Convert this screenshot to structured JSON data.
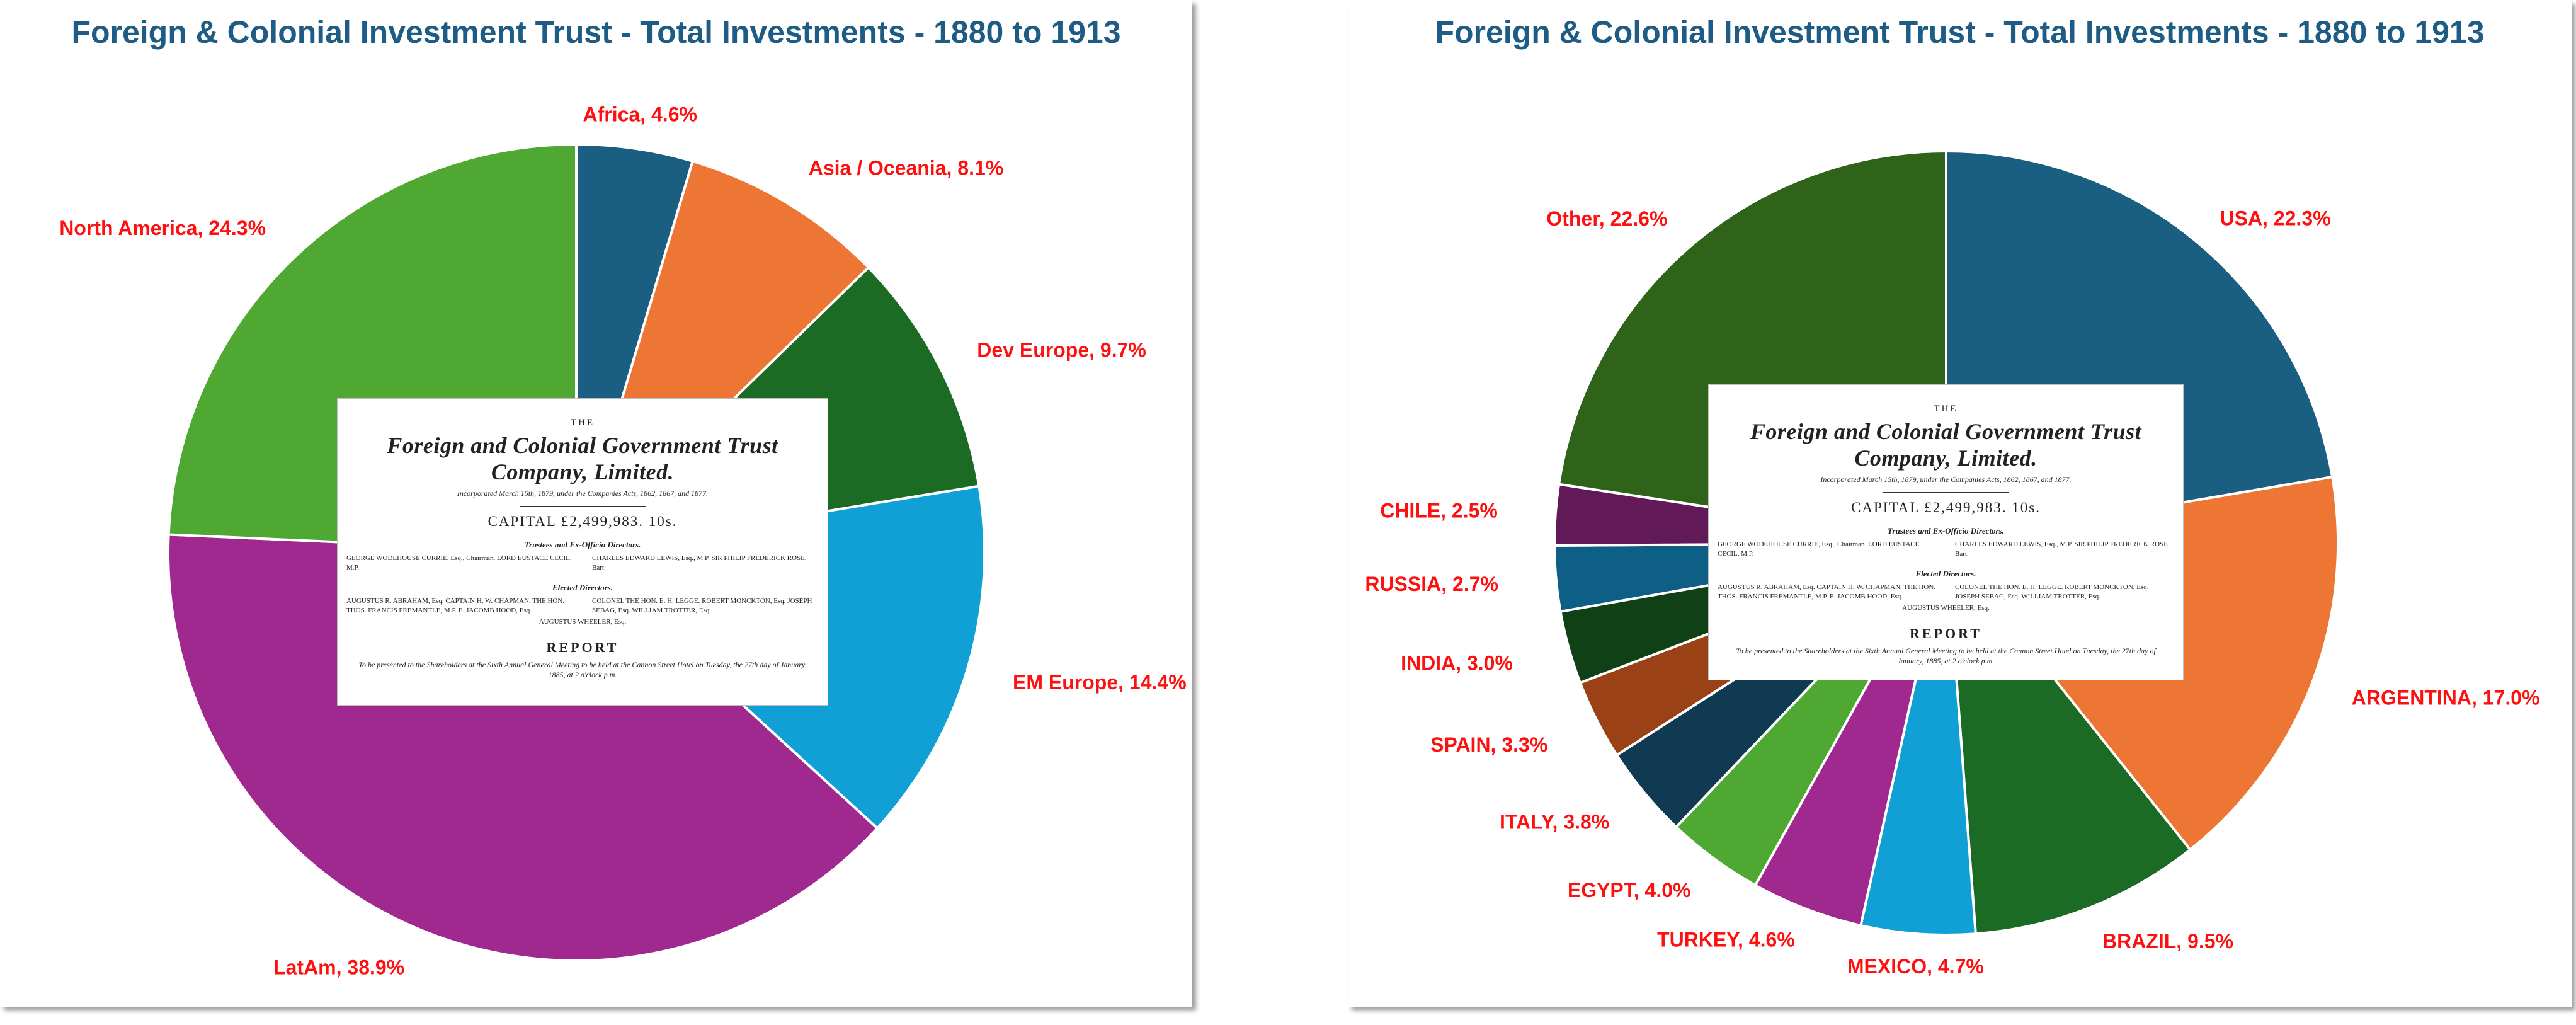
{
  "chart_data": [
    {
      "type": "pie",
      "title": "Foreign & Colonial Investment Trust - Total Investments - 1880 to 1913",
      "slices": [
        {
          "label": "Africa",
          "value": 4.6,
          "display": "Africa, 4.6%",
          "color": "#1a5f82"
        },
        {
          "label": "Asia / Oceania",
          "value": 8.1,
          "display": "Asia / Oceania, 8.1%",
          "color": "#ed7634"
        },
        {
          "label": "Dev Europe",
          "value": 9.7,
          "display": "Dev Europe, 9.7%",
          "color": "#1b6b24"
        },
        {
          "label": "EM Europe",
          "value": 14.4,
          "display": "EM Europe, 14.4%",
          "color": "#11a0d6"
        },
        {
          "label": "LatAm",
          "value": 38.9,
          "display": "LatAm, 38.9%",
          "color": "#a0298f"
        },
        {
          "label": "North America",
          "value": 24.3,
          "display": "North America, 24.3%",
          "color": "#4ea832"
        }
      ],
      "legend": "none",
      "label_color": "#ff1010"
    },
    {
      "type": "pie",
      "title": "Foreign & Colonial Investment Trust - Total Investments - 1880 to 1913",
      "slices": [
        {
          "label": "USA",
          "value": 22.3,
          "display": "USA, 22.3%",
          "color": "#1a5f82"
        },
        {
          "label": "ARGENTINA",
          "value": 17.0,
          "display": "ARGENTINA, 17.0%",
          "color": "#ed7634"
        },
        {
          "label": "BRAZIL",
          "value": 9.5,
          "display": "BRAZIL, 9.5%",
          "color": "#1b6b24"
        },
        {
          "label": "MEXICO",
          "value": 4.7,
          "display": "MEXICO, 4.7%",
          "color": "#11a0d6"
        },
        {
          "label": "TURKEY",
          "value": 4.6,
          "display": "TURKEY, 4.6%",
          "color": "#a0298f"
        },
        {
          "label": "EGYPT",
          "value": 4.0,
          "display": "EGYPT, 4.0%",
          "color": "#4ea832"
        },
        {
          "label": "ITALY",
          "value": 3.8,
          "display": "ITALY, 3.8%",
          "color": "#0f3a52"
        },
        {
          "label": "SPAIN",
          "value": 3.3,
          "display": "SPAIN, 3.3%",
          "color": "#9a4216"
        },
        {
          "label": "INDIA",
          "value": 3.0,
          "display": "INDIA, 3.0%",
          "color": "#0f4016"
        },
        {
          "label": "RUSSIA",
          "value": 2.7,
          "display": "RUSSIA, 2.7%",
          "color": "#0e5f85"
        },
        {
          "label": "CHILE",
          "value": 2.5,
          "display": "CHILE, 2.5%",
          "color": "#611a57"
        },
        {
          "label": "Other",
          "value": 22.6,
          "display": "Other, 22.6%",
          "color": "#2e6319"
        }
      ],
      "legend": "none",
      "label_color": "#ff1010"
    }
  ],
  "document": {
    "the": "THE",
    "company": "Foreign and Colonial Government Trust Company, Limited.",
    "incorporated": "Incorporated March 15th, 1879, under the Companies Acts, 1862, 1867, and 1877.",
    "capital": "CAPITAL £2,499,983. 10s.",
    "trustees_header": "Trustees and Ex-Officio Directors.",
    "trustees_left": "GEORGE WODEHOUSE CURRIE, Esq., Chairman. LORD EUSTACE CECIL, M.P.",
    "trustees_right": "CHARLES EDWARD LEWIS, Esq., M.P. SIR PHILIP FREDERICK ROSE, Bart.",
    "elected_header": "Elected Directors.",
    "elected_left": "AUGUSTUS R. ABRAHAM, Esq. CAPTAIN H. W. CHAPMAN. THE HON. THOS. FRANCIS FREMANTLE, M.P. E. JACOMB HOOD, Esq.",
    "elected_right": "COLONEL THE HON. E. H. LEGGE. ROBERT MONCKTON, Esq. JOSEPH SEBAG, Esq. WILLIAM TROTTER, Esq.",
    "elected_center": "AUGUSTUS WHEELER, Esq.",
    "report": "REPORT",
    "report_sub": "To be presented to the Shareholders at the Sixth Annual General Meeting to be held at the Cannon Street Hotel on Tuesday, the 27th day of January, 1885, at 2 o'clock p.m."
  }
}
